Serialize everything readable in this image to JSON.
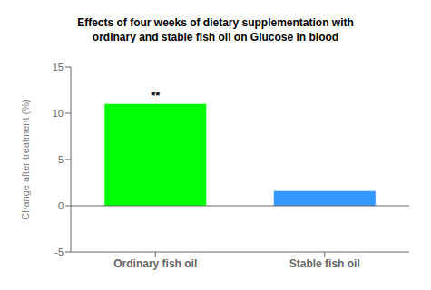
{
  "chart_data": {
    "type": "bar",
    "title": "Effects of four weeks of dietary supplementation with\nordinary and stable fish oil on Glucose in blood",
    "categories": [
      "Ordinary fish oil",
      "Stable fish oil"
    ],
    "values": [
      11.0,
      1.6
    ],
    "colors": [
      "#00FF00",
      "#3399FF"
    ],
    "y_label": "Change after treatment (%)",
    "ylim": [
      -5,
      15
    ],
    "yticks": [
      -5,
      0,
      5,
      10,
      15
    ],
    "annotations": [
      {
        "text": "**",
        "category": "Ordinary fish oil"
      }
    ],
    "grid": false
  }
}
